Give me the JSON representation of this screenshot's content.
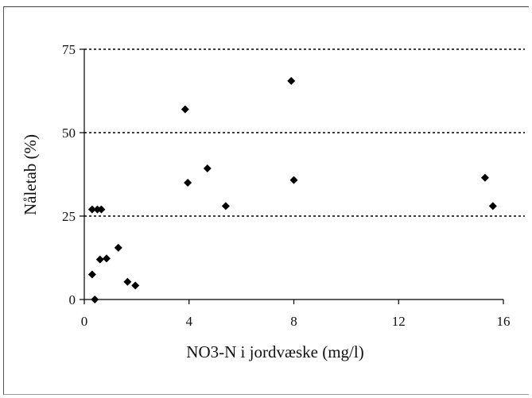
{
  "chart_data": {
    "type": "scatter",
    "title": "",
    "xlabel": "NO3-N i jordvæske (mg/l)",
    "ylabel": "Nåletab (%)",
    "xlim": [
      0,
      16
    ],
    "ylim": [
      0,
      75
    ],
    "x_ticks": [
      0,
      4,
      8,
      12,
      16
    ],
    "y_ticks": [
      0,
      25,
      50,
      75
    ],
    "x_tick_labels": [
      "0",
      "4",
      "8",
      "12",
      "16"
    ],
    "y_tick_labels": [
      "0",
      "25",
      "50",
      "75"
    ],
    "gridlines": {
      "axis": "y",
      "style": "dotted",
      "values": [
        25,
        50,
        75
      ]
    },
    "marker": "diamond",
    "marker_color": "#000000",
    "points": [
      {
        "x": 0.3,
        "y": 27.0
      },
      {
        "x": 0.5,
        "y": 27.0
      },
      {
        "x": 0.65,
        "y": 27.0
      },
      {
        "x": 0.3,
        "y": 7.5
      },
      {
        "x": 0.4,
        "y": 0.0
      },
      {
        "x": 0.6,
        "y": 12.0
      },
      {
        "x": 0.85,
        "y": 12.3
      },
      {
        "x": 1.3,
        "y": 15.5
      },
      {
        "x": 1.65,
        "y": 5.3
      },
      {
        "x": 1.95,
        "y": 4.2
      },
      {
        "x": 3.85,
        "y": 57.0
      },
      {
        "x": 3.95,
        "y": 35.0
      },
      {
        "x": 4.7,
        "y": 39.3
      },
      {
        "x": 5.4,
        "y": 28.0
      },
      {
        "x": 7.9,
        "y": 65.5
      },
      {
        "x": 8.0,
        "y": 35.8
      },
      {
        "x": 15.3,
        "y": 36.5
      },
      {
        "x": 15.6,
        "y": 28.0
      }
    ]
  }
}
